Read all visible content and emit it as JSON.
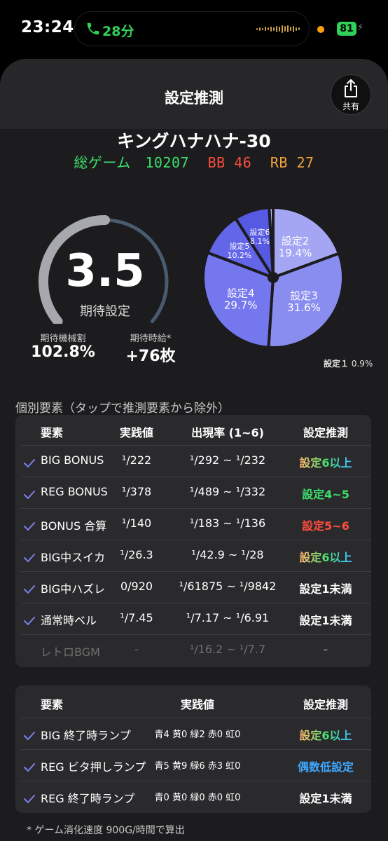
{
  "status": {
    "time": "23:24",
    "call_duration": "28分",
    "battery": "81"
  },
  "header": {
    "title": "設定推測",
    "share_label": "共有"
  },
  "machine": {
    "name": "キングハナハナ-30",
    "total_games_label": "総ゲーム",
    "total_games": "10207",
    "bb_label": "BB",
    "bb_count": "46",
    "rb_label": "RB",
    "rb_count": "27"
  },
  "gauge": {
    "value": "3.5",
    "label": "期待設定",
    "fill_fraction": 0.5,
    "payout_label": "期待機械割",
    "payout_value": "102.8%",
    "hourly_label": "期待時給*",
    "hourly_value": "+76枚"
  },
  "pie": {
    "slices": [
      {
        "name": "設定2",
        "value": "19.4%",
        "pct": 19.4,
        "color": "#a4a6f4"
      },
      {
        "name": "設定3",
        "value": "31.6%",
        "pct": 31.6,
        "color": "#8a8df0"
      },
      {
        "name": "設定4",
        "value": "29.7%",
        "pct": 29.7,
        "color": "#7577ee"
      },
      {
        "name": "設定5",
        "value": "10.2%",
        "pct": 10.2,
        "color": "#6366e8"
      },
      {
        "name": "設定6",
        "value": "8.1%",
        "pct": 8.1,
        "color": "#5659e2"
      },
      {
        "name": "設定1",
        "value": "0.9%",
        "pct": 0.9,
        "color": "#b8baf6"
      }
    ],
    "note_label": "設定１",
    "note_value": "0.9%"
  },
  "section1": {
    "title": "個別要素（タップで推測要素から除外）",
    "headers": [
      "要素",
      "実践値",
      "出現率 (1~6)",
      "設定推測"
    ],
    "rows": [
      {
        "name": "BIG BONUS",
        "actual": "¹/222",
        "rate": "¹/292 ~ ¹/232",
        "guess": "設定6以上",
        "color": "rainbow",
        "checked": true
      },
      {
        "name": "REG BONUS",
        "actual": "¹/378",
        "rate": "¹/489 ~ ¹/332",
        "guess": "設定4~5",
        "color": "lime",
        "checked": true
      },
      {
        "name": "BONUS 合算",
        "actual": "¹/140",
        "rate": "¹/183 ~ ¹/136",
        "guess": "設定5~6",
        "color": "red",
        "checked": true
      },
      {
        "name": "BIG中スイカ",
        "actual": "¹/26.3",
        "rate": "¹/42.9 ~ ¹/28",
        "guess": "設定6以上",
        "color": "rainbow",
        "checked": true
      },
      {
        "name": "BIG中ハズレ",
        "actual": "0/920",
        "rate": "¹/61875 ~ ¹/9842",
        "guess": "設定1未満",
        "color": "white",
        "checked": true
      },
      {
        "name": "通常時ベル",
        "actual": "¹/7.45",
        "rate": "¹/7.17 ~ ¹/6.91",
        "guess": "設定1未満",
        "color": "white",
        "checked": true
      },
      {
        "name": "レトロBGM",
        "actual": "-",
        "rate": "¹/16.2 ~ ¹/7.7",
        "guess": "-",
        "color": "disabled",
        "checked": false
      }
    ]
  },
  "section2": {
    "headers": [
      "要素",
      "実践値",
      "設定推測"
    ],
    "rows": [
      {
        "name": "BIG 終了時ランプ",
        "actual": "青4 黄0 緑2 赤0 虹0",
        "guess": "設定6以上",
        "color": "rainbow"
      },
      {
        "name": "REG ビタ押しランプ",
        "actual": "青5 黄9 緑6 赤3 虹0",
        "guess": "偶数低設定",
        "color": "blue"
      },
      {
        "name": "REG 終了時ランプ",
        "actual": "青0 黄0 緑0 赤0 虹0",
        "guess": "設定1未満",
        "color": "white"
      }
    ]
  },
  "footnote": "* ゲーム消化速度 900G/時間で算出",
  "icons": [
    "phone-icon",
    "share-icon",
    "check-icon"
  ],
  "colors": {
    "accent": "#6b6ef0",
    "green": "#3ce06a",
    "red": "#ff4d3d",
    "orange": "#f2a23c",
    "blue": "#3ea8ff"
  }
}
